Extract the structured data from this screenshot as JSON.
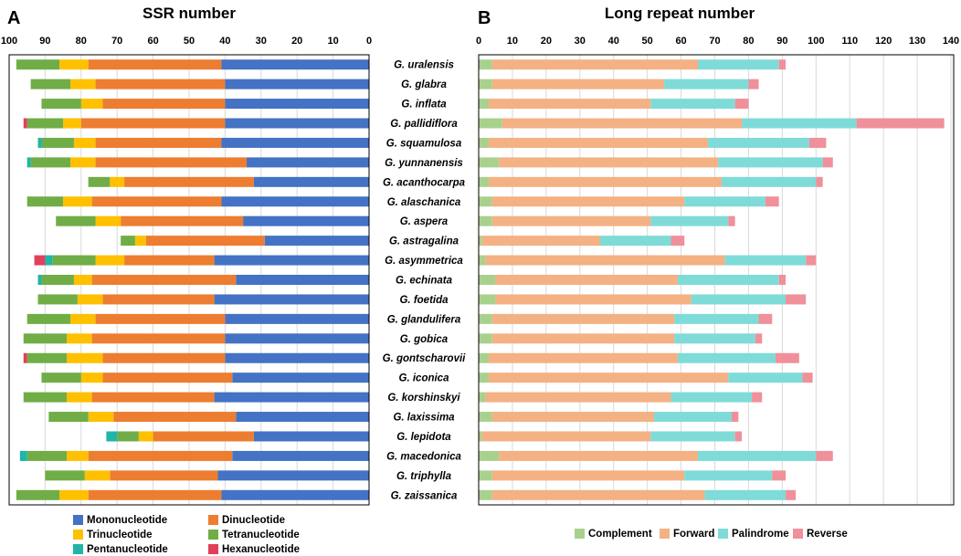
{
  "chart_data": [
    {
      "type": "bar",
      "orientation": "horizontal",
      "stacked": true,
      "x_direction": "reversed",
      "panel_label": "A",
      "title": "SSR number",
      "xlabel": "",
      "ylabel": "",
      "xlim": [
        0,
        100
      ],
      "x_ticks": [
        100,
        90,
        80,
        70,
        60,
        50,
        40,
        30,
        20,
        10,
        0
      ],
      "grid": true,
      "legend_position": "bottom",
      "categories": [
        "G. uralensis",
        "G. glabra",
        "G. inflata",
        "G. pallidiflora",
        "G. squamulosa",
        "G. yunnanensis",
        "G. acanthocarpa",
        "G. alaschanica",
        "G. aspera",
        "G. astragalina",
        "G. asymmetrica",
        "G. echinata",
        "G. foetida",
        "G. glandulifera",
        "G. gobica",
        "G. gontscharovii",
        "G. iconica",
        "G. korshinskyi",
        "G. laxissima",
        "G. lepidota",
        "G. macedonica",
        "G. triphylla",
        "G. zaissanica"
      ],
      "series": [
        {
          "name": "Mononucleotide",
          "color": "#4472C4",
          "values": [
            41,
            40,
            40,
            40,
            41,
            34,
            32,
            41,
            35,
            29,
            43,
            37,
            43,
            40,
            40,
            40,
            38,
            43,
            37,
            32,
            38,
            42,
            41
          ]
        },
        {
          "name": "Dinucleotide",
          "color": "#ED7D31",
          "values": [
            37,
            36,
            34,
            40,
            35,
            42,
            36,
            36,
            34,
            33,
            25,
            40,
            31,
            36,
            37,
            34,
            36,
            34,
            34,
            28,
            40,
            30,
            37
          ]
        },
        {
          "name": "Trinucleotide",
          "color": "#FFC000",
          "values": [
            8,
            7,
            6,
            5,
            6,
            7,
            4,
            8,
            7,
            3,
            8,
            5,
            7,
            7,
            7,
            10,
            6,
            7,
            7,
            4,
            6,
            7,
            8
          ]
        },
        {
          "name": "Tetranucleotide",
          "color": "#70AD47",
          "values": [
            12,
            11,
            11,
            10,
            9,
            11,
            6,
            10,
            11,
            4,
            12,
            9,
            11,
            12,
            12,
            11,
            11,
            12,
            11,
            6,
            11,
            11,
            12
          ]
        },
        {
          "name": "Pentanucleotide",
          "color": "#1FB5A8",
          "values": [
            0,
            0,
            0,
            0,
            1,
            1,
            0,
            0,
            0,
            0,
            2,
            1,
            0,
            0,
            0,
            0,
            0,
            0,
            0,
            3,
            2,
            0,
            0
          ]
        },
        {
          "name": "Hexanucleotide",
          "color": "#E0405A",
          "values": [
            0,
            0,
            0,
            1,
            0,
            0,
            0,
            0,
            0,
            0,
            3,
            0,
            0,
            0,
            0,
            1,
            0,
            0,
            0,
            0,
            0,
            0,
            0
          ]
        }
      ]
    },
    {
      "type": "bar",
      "orientation": "horizontal",
      "stacked": true,
      "panel_label": "B",
      "title": "Long repeat number",
      "xlabel": "",
      "ylabel": "",
      "xlim": [
        0,
        140
      ],
      "x_ticks": [
        0,
        10,
        20,
        30,
        40,
        50,
        60,
        70,
        80,
        90,
        100,
        110,
        120,
        130,
        140
      ],
      "grid": true,
      "legend_position": "bottom",
      "categories": [
        "G. uralensis",
        "G. glabra",
        "G. inflata",
        "G. pallidiflora",
        "G. squamulosa",
        "G. yunnanensis",
        "G. acanthocarpa",
        "G. alaschanica",
        "G. aspera",
        "G. astragalina",
        "G. asymmetrica",
        "G. echinata",
        "G. foetida",
        "G. glandulifera",
        "G. gobica",
        "G. gontscharovii",
        "G. iconica",
        "G. korshinskyi",
        "G. laxissima",
        "G. lepidota",
        "G. macedonica",
        "G. triphylla",
        "G. zaissanica"
      ],
      "series": [
        {
          "name": "Complement",
          "color": "#A9D18E",
          "values": [
            4,
            4,
            3,
            7,
            3,
            6,
            3,
            4,
            4,
            1,
            2,
            5,
            5,
            4,
            4,
            3,
            3,
            2,
            4,
            1,
            6,
            4,
            4
          ]
        },
        {
          "name": "Forward",
          "color": "#F4B183",
          "values": [
            61,
            51,
            48,
            71,
            65,
            65,
            69,
            57,
            47,
            35,
            71,
            54,
            58,
            54,
            54,
            56,
            71,
            55,
            48,
            50,
            59,
            57,
            63
          ]
        },
        {
          "name": "Palindrome",
          "color": "#7FDBD8",
          "values": [
            24,
            25,
            25,
            34,
            30,
            31,
            28,
            24,
            23,
            21,
            24,
            30,
            28,
            25,
            24,
            29,
            22,
            24,
            23,
            25,
            35,
            26,
            24
          ]
        },
        {
          "name": "Reverse",
          "color": "#F0909A",
          "values": [
            2,
            3,
            4,
            26,
            5,
            3,
            2,
            4,
            2,
            4,
            3,
            2,
            6,
            4,
            2,
            7,
            3,
            3,
            2,
            2,
            5,
            4,
            3
          ]
        }
      ]
    }
  ]
}
